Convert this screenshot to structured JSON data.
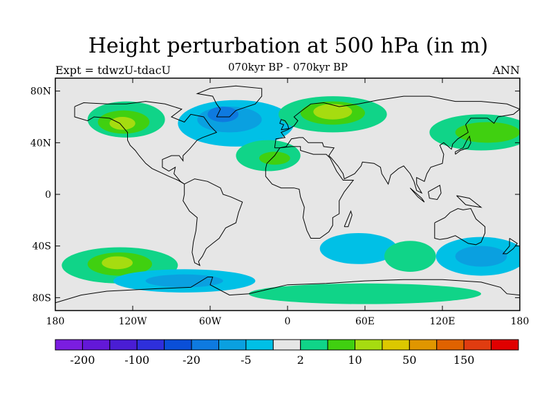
{
  "title": "Height perturbation at 500 hPa (in m)",
  "expt_label": "Expt = tdwzU-tdacU",
  "subtitle": "070kyr BP - 070kyr BP",
  "season": "ANN",
  "map": {
    "lon_range": [
      -180,
      180
    ],
    "lat_range": [
      -90,
      90
    ],
    "lon_ticks": [
      {
        "value": -180,
        "label": "180"
      },
      {
        "value": -120,
        "label": "120W"
      },
      {
        "value": -60,
        "label": "60W"
      },
      {
        "value": 0,
        "label": "0"
      },
      {
        "value": 60,
        "label": "60E"
      },
      {
        "value": 120,
        "label": "120E"
      },
      {
        "value": 180,
        "label": "180"
      }
    ],
    "lat_ticks": [
      {
        "value": 80,
        "label": "80N"
      },
      {
        "value": 40,
        "label": "40N"
      },
      {
        "value": 0,
        "label": "0"
      },
      {
        "value": -40,
        "label": "40S"
      },
      {
        "value": -80,
        "label": "80S"
      }
    ],
    "background_color": "#e6e6e6"
  },
  "colorbar": {
    "colors": [
      "#7b1de0",
      "#6318d8",
      "#4a1dd4",
      "#2e2fdc",
      "#0a4fd8",
      "#0e7ae0",
      "#0aa0e0",
      "#00c0e6",
      "#e6e6e6",
      "#10d488",
      "#40d010",
      "#a6dc10",
      "#dcc800",
      "#e09600",
      "#e06200",
      "#e03c10",
      "#e00000"
    ],
    "labels": [
      {
        "boundary": 1,
        "text": "-200"
      },
      {
        "boundary": 3,
        "text": "-100"
      },
      {
        "boundary": 5,
        "text": "-20"
      },
      {
        "boundary": 7,
        "text": "-5"
      },
      {
        "boundary": 9,
        "text": "2"
      },
      {
        "boundary": 11,
        "text": "10"
      },
      {
        "boundary": 13,
        "text": "50"
      },
      {
        "boundary": 15,
        "text": "150"
      }
    ]
  },
  "field_regions": [
    {
      "lon": -125,
      "lat": 58,
      "rx": 30,
      "ry": 14,
      "level": 9
    },
    {
      "lon": -127,
      "lat": 56,
      "rx": 20,
      "ry": 9,
      "level": 10
    },
    {
      "lon": -128,
      "lat": 55,
      "rx": 10,
      "ry": 5,
      "level": 11
    },
    {
      "lon": -40,
      "lat": 55,
      "rx": 45,
      "ry": 18,
      "level": 7
    },
    {
      "lon": -45,
      "lat": 58,
      "rx": 25,
      "ry": 10,
      "level": 6
    },
    {
      "lon": -50,
      "lat": 62,
      "rx": 12,
      "ry": 6,
      "level": 5
    },
    {
      "lon": 35,
      "lat": 62,
      "rx": 42,
      "ry": 14,
      "level": 9
    },
    {
      "lon": 35,
      "lat": 63,
      "rx": 25,
      "ry": 9,
      "level": 10
    },
    {
      "lon": 35,
      "lat": 64,
      "rx": 15,
      "ry": 6,
      "level": 11
    },
    {
      "lon": -15,
      "lat": 30,
      "rx": 25,
      "ry": 12,
      "level": 9
    },
    {
      "lon": -10,
      "lat": 28,
      "rx": 12,
      "ry": 5,
      "level": 10
    },
    {
      "lon": 150,
      "lat": 48,
      "rx": 40,
      "ry": 14,
      "level": 9
    },
    {
      "lon": 155,
      "lat": 48,
      "rx": 25,
      "ry": 8,
      "level": 10
    },
    {
      "lon": -130,
      "lat": -55,
      "rx": 45,
      "ry": 14,
      "level": 9
    },
    {
      "lon": -130,
      "lat": -54,
      "rx": 25,
      "ry": 9,
      "level": 10
    },
    {
      "lon": -132,
      "lat": -53,
      "rx": 12,
      "ry": 5,
      "level": 11
    },
    {
      "lon": -80,
      "lat": -67,
      "rx": 55,
      "ry": 9,
      "level": 7
    },
    {
      "lon": -80,
      "lat": -67,
      "rx": 30,
      "ry": 5,
      "level": 6
    },
    {
      "lon": 60,
      "lat": -77,
      "rx": 90,
      "ry": 8,
      "level": 9
    },
    {
      "lon": 55,
      "lat": -42,
      "rx": 30,
      "ry": 12,
      "level": 7
    },
    {
      "lon": 150,
      "lat": -48,
      "rx": 35,
      "ry": 15,
      "level": 7
    },
    {
      "lon": 150,
      "lat": -48,
      "rx": 20,
      "ry": 8,
      "level": 6
    },
    {
      "lon": 95,
      "lat": -48,
      "rx": 20,
      "ry": 12,
      "level": 9
    }
  ]
}
